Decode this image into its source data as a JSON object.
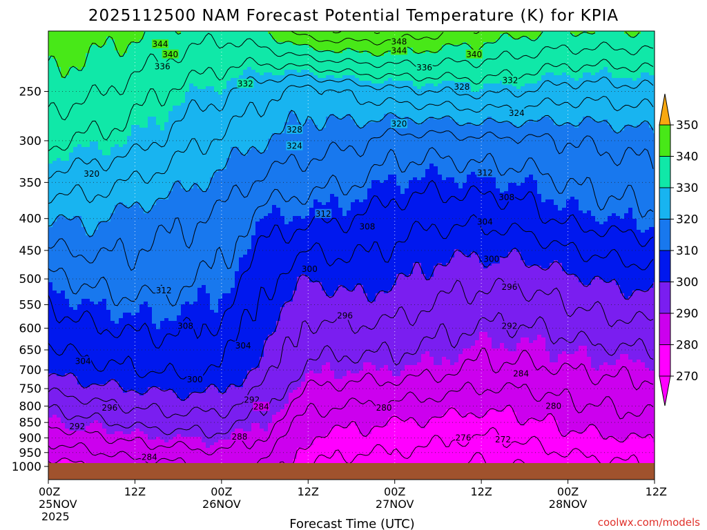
{
  "chart_data": {
    "type": "contour",
    "title": "2025112500 NAM Forecast Potential Temperature (K) for KPIA",
    "xlabel": "Forecast Time (UTC)",
    "ylabel": "",
    "credit": "coolwx.com/models",
    "x_range_hours": [
      0,
      84
    ],
    "x_ticks": [
      {
        "hour": 0,
        "label": "00Z",
        "date": "25NOV",
        "year": "2025"
      },
      {
        "hour": 12,
        "label": "12Z",
        "date": "",
        "year": ""
      },
      {
        "hour": 24,
        "label": "00Z",
        "date": "26NOV",
        "year": ""
      },
      {
        "hour": 36,
        "label": "12Z",
        "date": "",
        "year": ""
      },
      {
        "hour": 48,
        "label": "00Z",
        "date": "27NOV",
        "year": ""
      },
      {
        "hour": 60,
        "label": "12Z",
        "date": "",
        "year": ""
      },
      {
        "hour": 72,
        "label": "00Z",
        "date": "28NOV",
        "year": ""
      },
      {
        "hour": 84,
        "label": "12Z",
        "date": "",
        "year": ""
      }
    ],
    "y_axis": "pressure (hPa), log scale, inverted",
    "y_range": [
      1050,
      200
    ],
    "y_ticks": [
      250,
      300,
      350,
      400,
      450,
      500,
      550,
      600,
      650,
      700,
      750,
      800,
      850,
      900,
      950,
      1000
    ],
    "grid": true,
    "contour_interval_k": 4,
    "fill_bands": [
      {
        "level": 270,
        "color": "#ff00ff"
      },
      {
        "level": 280,
        "color": "#cc00ee"
      },
      {
        "level": 290,
        "color": "#7a1ef0"
      },
      {
        "level": 300,
        "color": "#0018ee"
      },
      {
        "level": 310,
        "color": "#1878ee"
      },
      {
        "level": 320,
        "color": "#18b4f0"
      },
      {
        "level": 330,
        "color": "#10e8a8"
      },
      {
        "level": 340,
        "color": "#48e818"
      },
      {
        "level": 350,
        "color": "#e8f018"
      },
      {
        "level": 360,
        "color": "#f8a810"
      }
    ],
    "colorbar_labels": [
      "350",
      "340",
      "330",
      "320",
      "310",
      "300",
      "290",
      "280",
      "270"
    ],
    "ground_color": "#a0522d",
    "theta_profiles": [
      {
        "hour": 0,
        "surface": 278,
        "p850": 289,
        "p700": 301,
        "p500": 311,
        "p400": 320,
        "p300": 333,
        "p250": 338,
        "p200": 344
      },
      {
        "hour": 6,
        "surface": 280,
        "p850": 291,
        "p700": 303,
        "p500": 313,
        "p400": 321,
        "p300": 331,
        "p250": 337,
        "p200": 342
      },
      {
        "hour": 12,
        "surface": 282,
        "p850": 293,
        "p700": 304,
        "p500": 314,
        "p400": 318,
        "p300": 330,
        "p250": 334,
        "p200": 341
      },
      {
        "hour": 18,
        "surface": 283,
        "p850": 294,
        "p700": 305,
        "p500": 313,
        "p400": 317,
        "p300": 326,
        "p250": 331,
        "p200": 339
      },
      {
        "hour": 24,
        "surface": 285,
        "p850": 294,
        "p700": 304,
        "p500": 311,
        "p400": 315,
        "p300": 323,
        "p250": 329,
        "p200": 337
      },
      {
        "hour": 30,
        "surface": 283,
        "p850": 290,
        "p700": 298,
        "p500": 305,
        "p400": 310,
        "p300": 320,
        "p250": 325,
        "p200": 340
      },
      {
        "hour": 36,
        "surface": 276,
        "p850": 282,
        "p700": 291,
        "p500": 300,
        "p400": 309,
        "p300": 318,
        "p250": 322,
        "p200": 347
      },
      {
        "hour": 42,
        "surface": 274,
        "p850": 281,
        "p700": 290,
        "p500": 302,
        "p400": 308,
        "p300": 317,
        "p250": 325,
        "p200": 348
      },
      {
        "hour": 48,
        "surface": 274,
        "p850": 280,
        "p700": 290,
        "p500": 301,
        "p400": 306,
        "p300": 314,
        "p250": 327,
        "p200": 347
      },
      {
        "hour": 54,
        "surface": 273,
        "p850": 279,
        "p700": 289,
        "p500": 298,
        "p400": 305,
        "p300": 314,
        "p250": 328,
        "p200": 345
      },
      {
        "hour": 60,
        "surface": 271,
        "p850": 278,
        "p700": 287,
        "p500": 297,
        "p400": 305,
        "p300": 315,
        "p250": 329,
        "p200": 343
      },
      {
        "hour": 66,
        "surface": 272,
        "p850": 279,
        "p700": 287,
        "p500": 297,
        "p400": 306,
        "p300": 315,
        "p250": 328,
        "p200": 341
      },
      {
        "hour": 72,
        "surface": 274,
        "p850": 281,
        "p700": 288,
        "p500": 299,
        "p400": 309,
        "p300": 316,
        "p250": 326,
        "p200": 340
      },
      {
        "hour": 78,
        "surface": 275,
        "p850": 282,
        "p700": 289,
        "p500": 301,
        "p400": 310,
        "p300": 317,
        "p250": 326,
        "p200": 340
      },
      {
        "hour": 84,
        "surface": 276,
        "p850": 283,
        "p700": 289,
        "p500": 302,
        "p400": 311,
        "p300": 318,
        "p250": 327,
        "p200": 340
      }
    ],
    "contour_labels": [
      {
        "text": "344",
        "hour": 15.5,
        "pressure": 210
      },
      {
        "text": "340",
        "hour": 16.9,
        "pressure": 218
      },
      {
        "text": "336",
        "hour": 15.8,
        "pressure": 228
      },
      {
        "text": "332",
        "hour": 27.3,
        "pressure": 243
      },
      {
        "text": "328",
        "hour": 34.1,
        "pressure": 288
      },
      {
        "text": "324",
        "hour": 34.1,
        "pressure": 306
      },
      {
        "text": "320",
        "hour": 6.0,
        "pressure": 339
      },
      {
        "text": "312",
        "hour": 38.1,
        "pressure": 393
      },
      {
        "text": "308",
        "hour": 44.2,
        "pressure": 412
      },
      {
        "text": "312",
        "hour": 16.0,
        "pressure": 522
      },
      {
        "text": "308",
        "hour": 19.0,
        "pressure": 595
      },
      {
        "text": "304",
        "hour": 4.8,
        "pressure": 678
      },
      {
        "text": "304",
        "hour": 27.0,
        "pressure": 640
      },
      {
        "text": "300",
        "hour": 20.3,
        "pressure": 725
      },
      {
        "text": "300",
        "hour": 36.2,
        "pressure": 482
      },
      {
        "text": "296",
        "hour": 8.5,
        "pressure": 805
      },
      {
        "text": "296",
        "hour": 41.1,
        "pressure": 573
      },
      {
        "text": "292",
        "hour": 4.0,
        "pressure": 863
      },
      {
        "text": "292",
        "hour": 28.2,
        "pressure": 782
      },
      {
        "text": "288",
        "hour": 26.5,
        "pressure": 896
      },
      {
        "text": "284",
        "hour": 29.5,
        "pressure": 802
      },
      {
        "text": "284",
        "hour": 14.0,
        "pressure": 967
      },
      {
        "text": "280",
        "hour": 46.5,
        "pressure": 805
      },
      {
        "text": "276",
        "hour": 57.5,
        "pressure": 900
      },
      {
        "text": "272",
        "hour": 63.0,
        "pressure": 906
      },
      {
        "text": "348",
        "hour": 48.6,
        "pressure": 208
      },
      {
        "text": "344",
        "hour": 48.6,
        "pressure": 215
      },
      {
        "text": "336",
        "hour": 52.1,
        "pressure": 229
      },
      {
        "text": "340",
        "hour": 59.0,
        "pressure": 218
      },
      {
        "text": "328",
        "hour": 57.3,
        "pressure": 246
      },
      {
        "text": "332",
        "hour": 64.0,
        "pressure": 240
      },
      {
        "text": "324",
        "hour": 64.9,
        "pressure": 271
      },
      {
        "text": "320",
        "hour": 48.6,
        "pressure": 282
      },
      {
        "text": "312",
        "hour": 60.5,
        "pressure": 338
      },
      {
        "text": "308",
        "hour": 63.5,
        "pressure": 370
      },
      {
        "text": "304",
        "hour": 60.5,
        "pressure": 405
      },
      {
        "text": "300",
        "hour": 61.4,
        "pressure": 465
      },
      {
        "text": "296",
        "hour": 63.9,
        "pressure": 515
      },
      {
        "text": "292",
        "hour": 63.9,
        "pressure": 595
      },
      {
        "text": "284",
        "hour": 65.5,
        "pressure": 710
      },
      {
        "text": "280",
        "hour": 70.0,
        "pressure": 800
      }
    ]
  }
}
